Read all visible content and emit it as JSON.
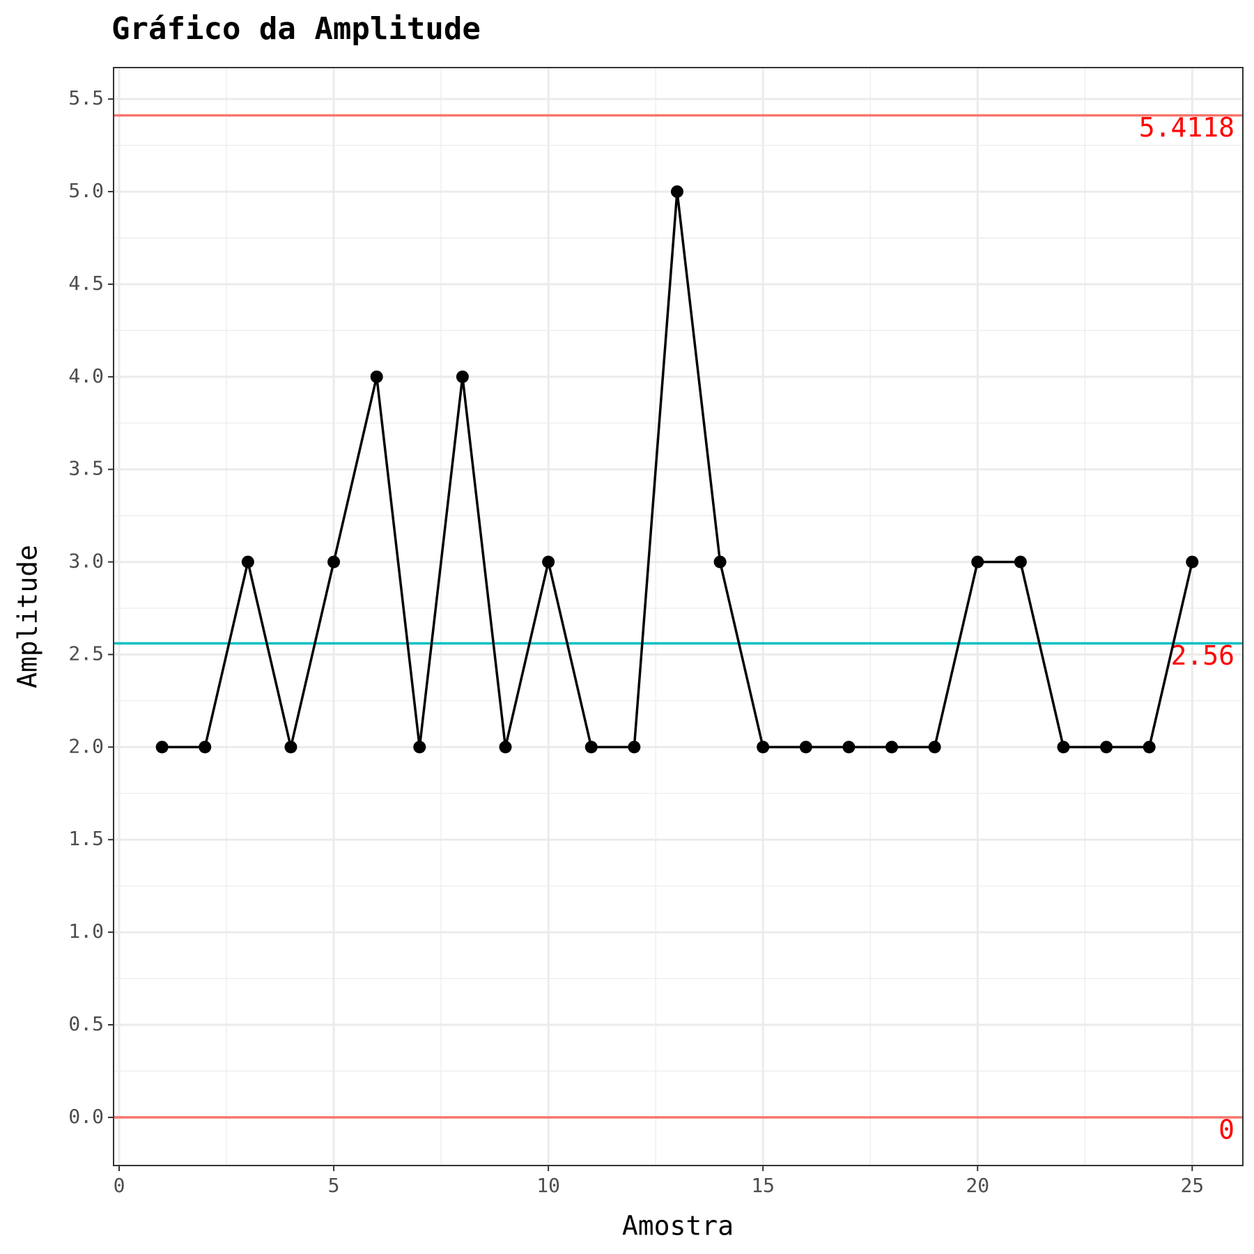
{
  "chart_data": {
    "type": "line",
    "title": "Gráfico da Amplitude",
    "x_label": "Amostra",
    "y_label": "Amplitude",
    "x": [
      1,
      2,
      3,
      4,
      5,
      6,
      7,
      8,
      9,
      10,
      11,
      12,
      13,
      14,
      15,
      16,
      17,
      18,
      19,
      20,
      21,
      22,
      23,
      24,
      25
    ],
    "series": [
      {
        "name": "Amplitude",
        "color": "#000000",
        "values": [
          2,
          2,
          3,
          2,
          3,
          4,
          2,
          4,
          2,
          3,
          2,
          2,
          5,
          3,
          2,
          2,
          2,
          2,
          2,
          3,
          3,
          2,
          2,
          2,
          3
        ]
      }
    ],
    "reference_lines": [
      {
        "value": 5.4118,
        "color": "#f8766d"
      },
      {
        "value": 2.56,
        "color": "#00bfc4"
      },
      {
        "value": 0,
        "color": "#f8766d"
      }
    ],
    "reference_label_color": "#ff0000",
    "xlim": [
      -0.13,
      26.18
    ],
    "ylim": [
      -0.26,
      5.67
    ],
    "xticks": [
      0,
      5,
      10,
      15,
      20,
      25
    ],
    "yticks": [
      {
        "value": 0,
        "label": "0.0"
      },
      0.5,
      {
        "value": 1,
        "label": "1.0"
      },
      1.5,
      {
        "value": 2,
        "label": "2.0"
      },
      2.5,
      {
        "value": 3,
        "label": "3.0"
      },
      3.5,
      {
        "value": 4,
        "label": "4.0"
      },
      4.5,
      {
        "value": 5,
        "label": "5.0"
      },
      5.5
    ],
    "grid": true
  }
}
